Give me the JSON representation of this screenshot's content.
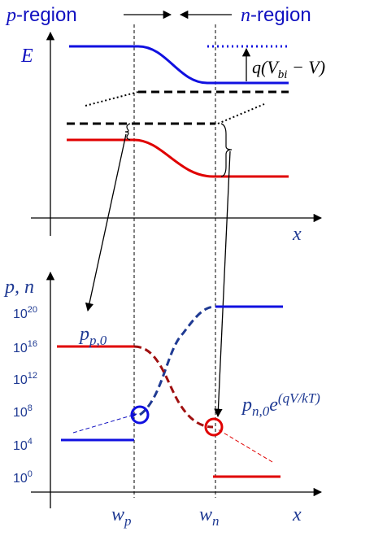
{
  "header": {
    "p_region": {
      "var": "p",
      "rest": "-region"
    },
    "n_region": {
      "var": "n",
      "rest": "-region"
    }
  },
  "band": {
    "axis_label": "E",
    "x_label": "x",
    "barrier": {
      "pre": "q(V",
      "sub": "bi",
      "post": " − V)"
    }
  },
  "carriers": {
    "axis_label": "p, n",
    "ticks": [
      {
        "base": "10",
        "exponent": "20"
      },
      {
        "base": "10",
        "exponent": "16"
      },
      {
        "base": "10",
        "exponent": "12"
      },
      {
        "base": "10",
        "exponent": "8"
      },
      {
        "base": "10",
        "exponent": "4"
      },
      {
        "base": "10",
        "exponent": "0"
      }
    ],
    "p_label": {
      "var": "p",
      "sub": "p,0"
    },
    "n_label": {
      "var": "p",
      "sub": "n,0",
      "exp_base": "e",
      "exp": "(qV/kT)"
    },
    "w_p": {
      "var": "w",
      "sub": "p"
    },
    "w_n": {
      "var": "w",
      "sub": "n"
    },
    "x_label": "x"
  }
}
